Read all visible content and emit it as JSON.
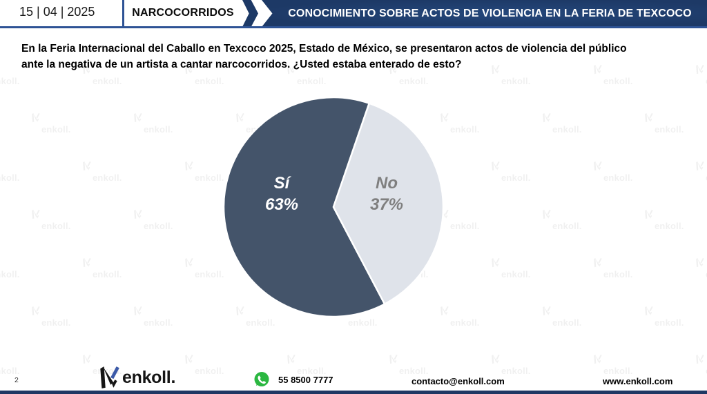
{
  "header": {
    "date": "15 | 04 | 2025",
    "section": "NARCOCORRIDOS",
    "title": "CONOCIMIENTO SOBRE ACTOS DE VIOLENCIA EN LA FERIA DE TEXCOCO"
  },
  "question": {
    "lines": [
      "En la Feria Internacional del Caballo en Texcoco 2025, Estado de México, se presentaron actos de violencia del público",
      "ante la negativa de un artista a cantar narcocorridos. ¿Usted estaba enterado de esto?"
    ]
  },
  "chart_data": {
    "type": "pie",
    "title": "",
    "legend_position": "none",
    "rotation_deg": 152.2,
    "separator_color": "#FFFFFF",
    "slices": [
      {
        "label": "Sí",
        "value": 63,
        "value_label": "63%",
        "color": "#44546A",
        "text_color": "#FFFFFF"
      },
      {
        "label": "No",
        "value": 37,
        "value_label": "37%",
        "color": "#DFE3EA",
        "text_color": "#7F7F7F"
      }
    ]
  },
  "watermark": {
    "text": "enkoll."
  },
  "footer": {
    "page_number": "2",
    "logo_text": "enkoll.",
    "phone": "55 8500 7777",
    "email": "contacto@enkoll.com",
    "website": "www.enkoll.com"
  },
  "colors": {
    "accent_line": "#2E5395",
    "banner_navy": "#1D3966",
    "bottom_bar": "#1F3864",
    "whatsapp_green": "#2BB741",
    "logo_blue": "#3C5AA8"
  }
}
